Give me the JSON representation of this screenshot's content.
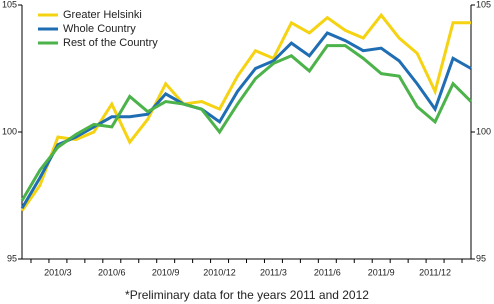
{
  "chart_data": {
    "type": "line",
    "footnote": "*Preliminary data for the years 2011 and 2012",
    "categories": [
      null,
      null,
      "2010/3",
      null,
      null,
      "2010/6",
      null,
      null,
      "2010/9",
      null,
      null,
      "2010/12",
      null,
      null,
      "2011/3",
      null,
      null,
      "2011/6",
      null,
      null,
      "2011/9",
      null,
      null,
      "2011/12",
      null,
      null
    ],
    "series": [
      {
        "name": "Greater Helsinki",
        "color": "#f5d312",
        "values": [
          96.9,
          97.9,
          99.8,
          99.7,
          100.0,
          101.1,
          99.6,
          100.5,
          101.9,
          101.1,
          101.2,
          100.9,
          102.2,
          103.2,
          102.9,
          104.3,
          103.9,
          104.5,
          104.0,
          103.7,
          104.6,
          103.7,
          103.1,
          101.6,
          104.3,
          104.3
        ]
      },
      {
        "name": "Whole Country",
        "color": "#1f6db3",
        "values": [
          97.0,
          98.2,
          99.5,
          99.8,
          100.2,
          100.6,
          100.6,
          100.7,
          101.5,
          101.1,
          100.9,
          100.4,
          101.6,
          102.5,
          102.8,
          103.5,
          103.0,
          103.9,
          103.6,
          103.2,
          103.3,
          102.8,
          101.9,
          100.9,
          102.9,
          102.5
        ]
      },
      {
        "name": "Rest of the Country",
        "color": "#4cb24a",
        "values": [
          97.3,
          98.5,
          99.4,
          99.9,
          100.3,
          100.2,
          101.4,
          100.8,
          101.2,
          101.1,
          100.9,
          100.0,
          101.1,
          102.1,
          102.7,
          103.0,
          102.4,
          103.4,
          103.4,
          102.9,
          102.3,
          102.2,
          101.0,
          100.4,
          101.9,
          101.2
        ]
      }
    ],
    "ylim": [
      95,
      105
    ],
    "yticks": [
      95,
      100,
      105
    ],
    "y2lim": [
      95,
      105
    ],
    "y2ticks": [
      95,
      100,
      105
    ],
    "legend": "upper left",
    "grid": false
  }
}
